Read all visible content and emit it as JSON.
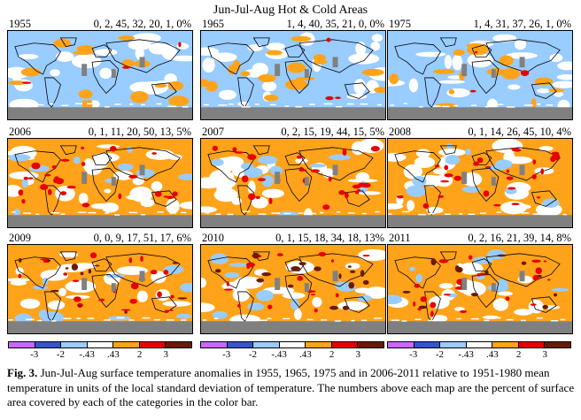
{
  "figure": {
    "title": "Jun-Jul-Aug Hot & Cold Areas",
    "panels": [
      {
        "year": "1955",
        "percentages": "0, 2, 45, 32, 20, 1, 0%",
        "warm_level": 0
      },
      {
        "year": "1965",
        "percentages": "1, 4, 40, 35, 21, 0, 0%",
        "warm_level": 0
      },
      {
        "year": "1975",
        "percentages": "1, 4, 31, 37, 26, 1, 0%",
        "warm_level": 0
      },
      {
        "year": "2006",
        "percentages": "0, 1, 11, 20, 50, 13, 5%",
        "warm_level": 1
      },
      {
        "year": "2007",
        "percentages": "0, 2, 15, 19, 44, 15, 5%",
        "warm_level": 1
      },
      {
        "year": "2008",
        "percentages": "0, 1, 14, 26, 45, 10, 4%",
        "warm_level": 1
      },
      {
        "year": "2009",
        "percentages": "0, 0, 9, 17, 51, 17, 6%",
        "warm_level": 2
      },
      {
        "year": "2010",
        "percentages": "0, 1, 15, 18, 34, 18, 13%",
        "warm_level": 2
      },
      {
        "year": "2011",
        "percentages": "0, 2, 16, 21, 39, 14, 8%",
        "warm_level": 2
      }
    ],
    "colorbar": {
      "colors": [
        "#cc66ff",
        "#3355cc",
        "#99ccff",
        "#ffffff",
        "#ffa31a",
        "#e60000",
        "#6b1a00"
      ],
      "tick_labels": [
        "-3",
        "-2",
        "-.43",
        ".43",
        "2",
        "3"
      ]
    },
    "colors": {
      "land_nodata": "#808080",
      "warm": "#ffa31a",
      "cold": "#99ccff",
      "hot": "#e60000",
      "extreme": "#6b1a00"
    }
  },
  "caption": {
    "label": "Fig. 3.",
    "text": "  Jun-Jul-Aug surface temperature anomalies in 1955, 1965, 1975 and in 2006-2011 relative to 1951-1980 mean temperature in units of the local standard deviation of temperature.  The numbers above each map are the percent of surface area covered by each of the categories in the color bar."
  }
}
